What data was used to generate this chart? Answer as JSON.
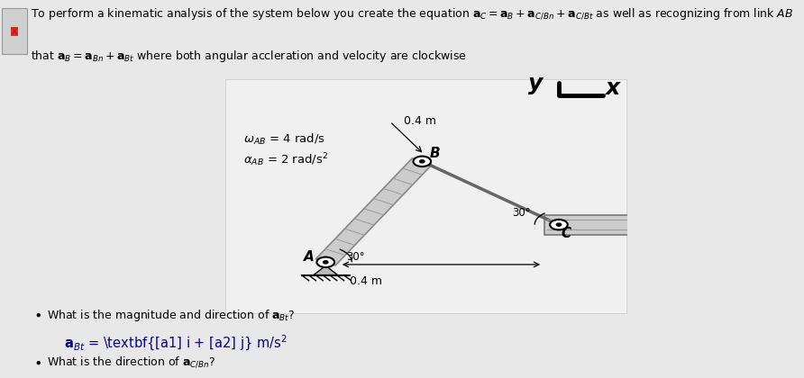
{
  "bg_color": "#e8e8e8",
  "box_bg": "#f0f0f0",
  "diagram_border": "#cccccc",
  "text_color": "#000000",
  "blue_color": "#000099",
  "header_fs": 9.0,
  "body_fs": 9.0,
  "eq_fs": 10.5,
  "omega_label": "$\\omega_{AB}$ = 4 rad/s",
  "alpha_label": "$\\alpha_{AB}$ = 2 rad/s$^2$",
  "label_A": "A",
  "label_B": "B",
  "label_C": "C",
  "angle_label1": "30°",
  "angle_label2": "30°",
  "dim_AB": "0.4 m",
  "dim_BC": "0.4 m",
  "icon_color": "#cc0000",
  "rail_color": "#aaaaaa",
  "rod_color": "#888888"
}
